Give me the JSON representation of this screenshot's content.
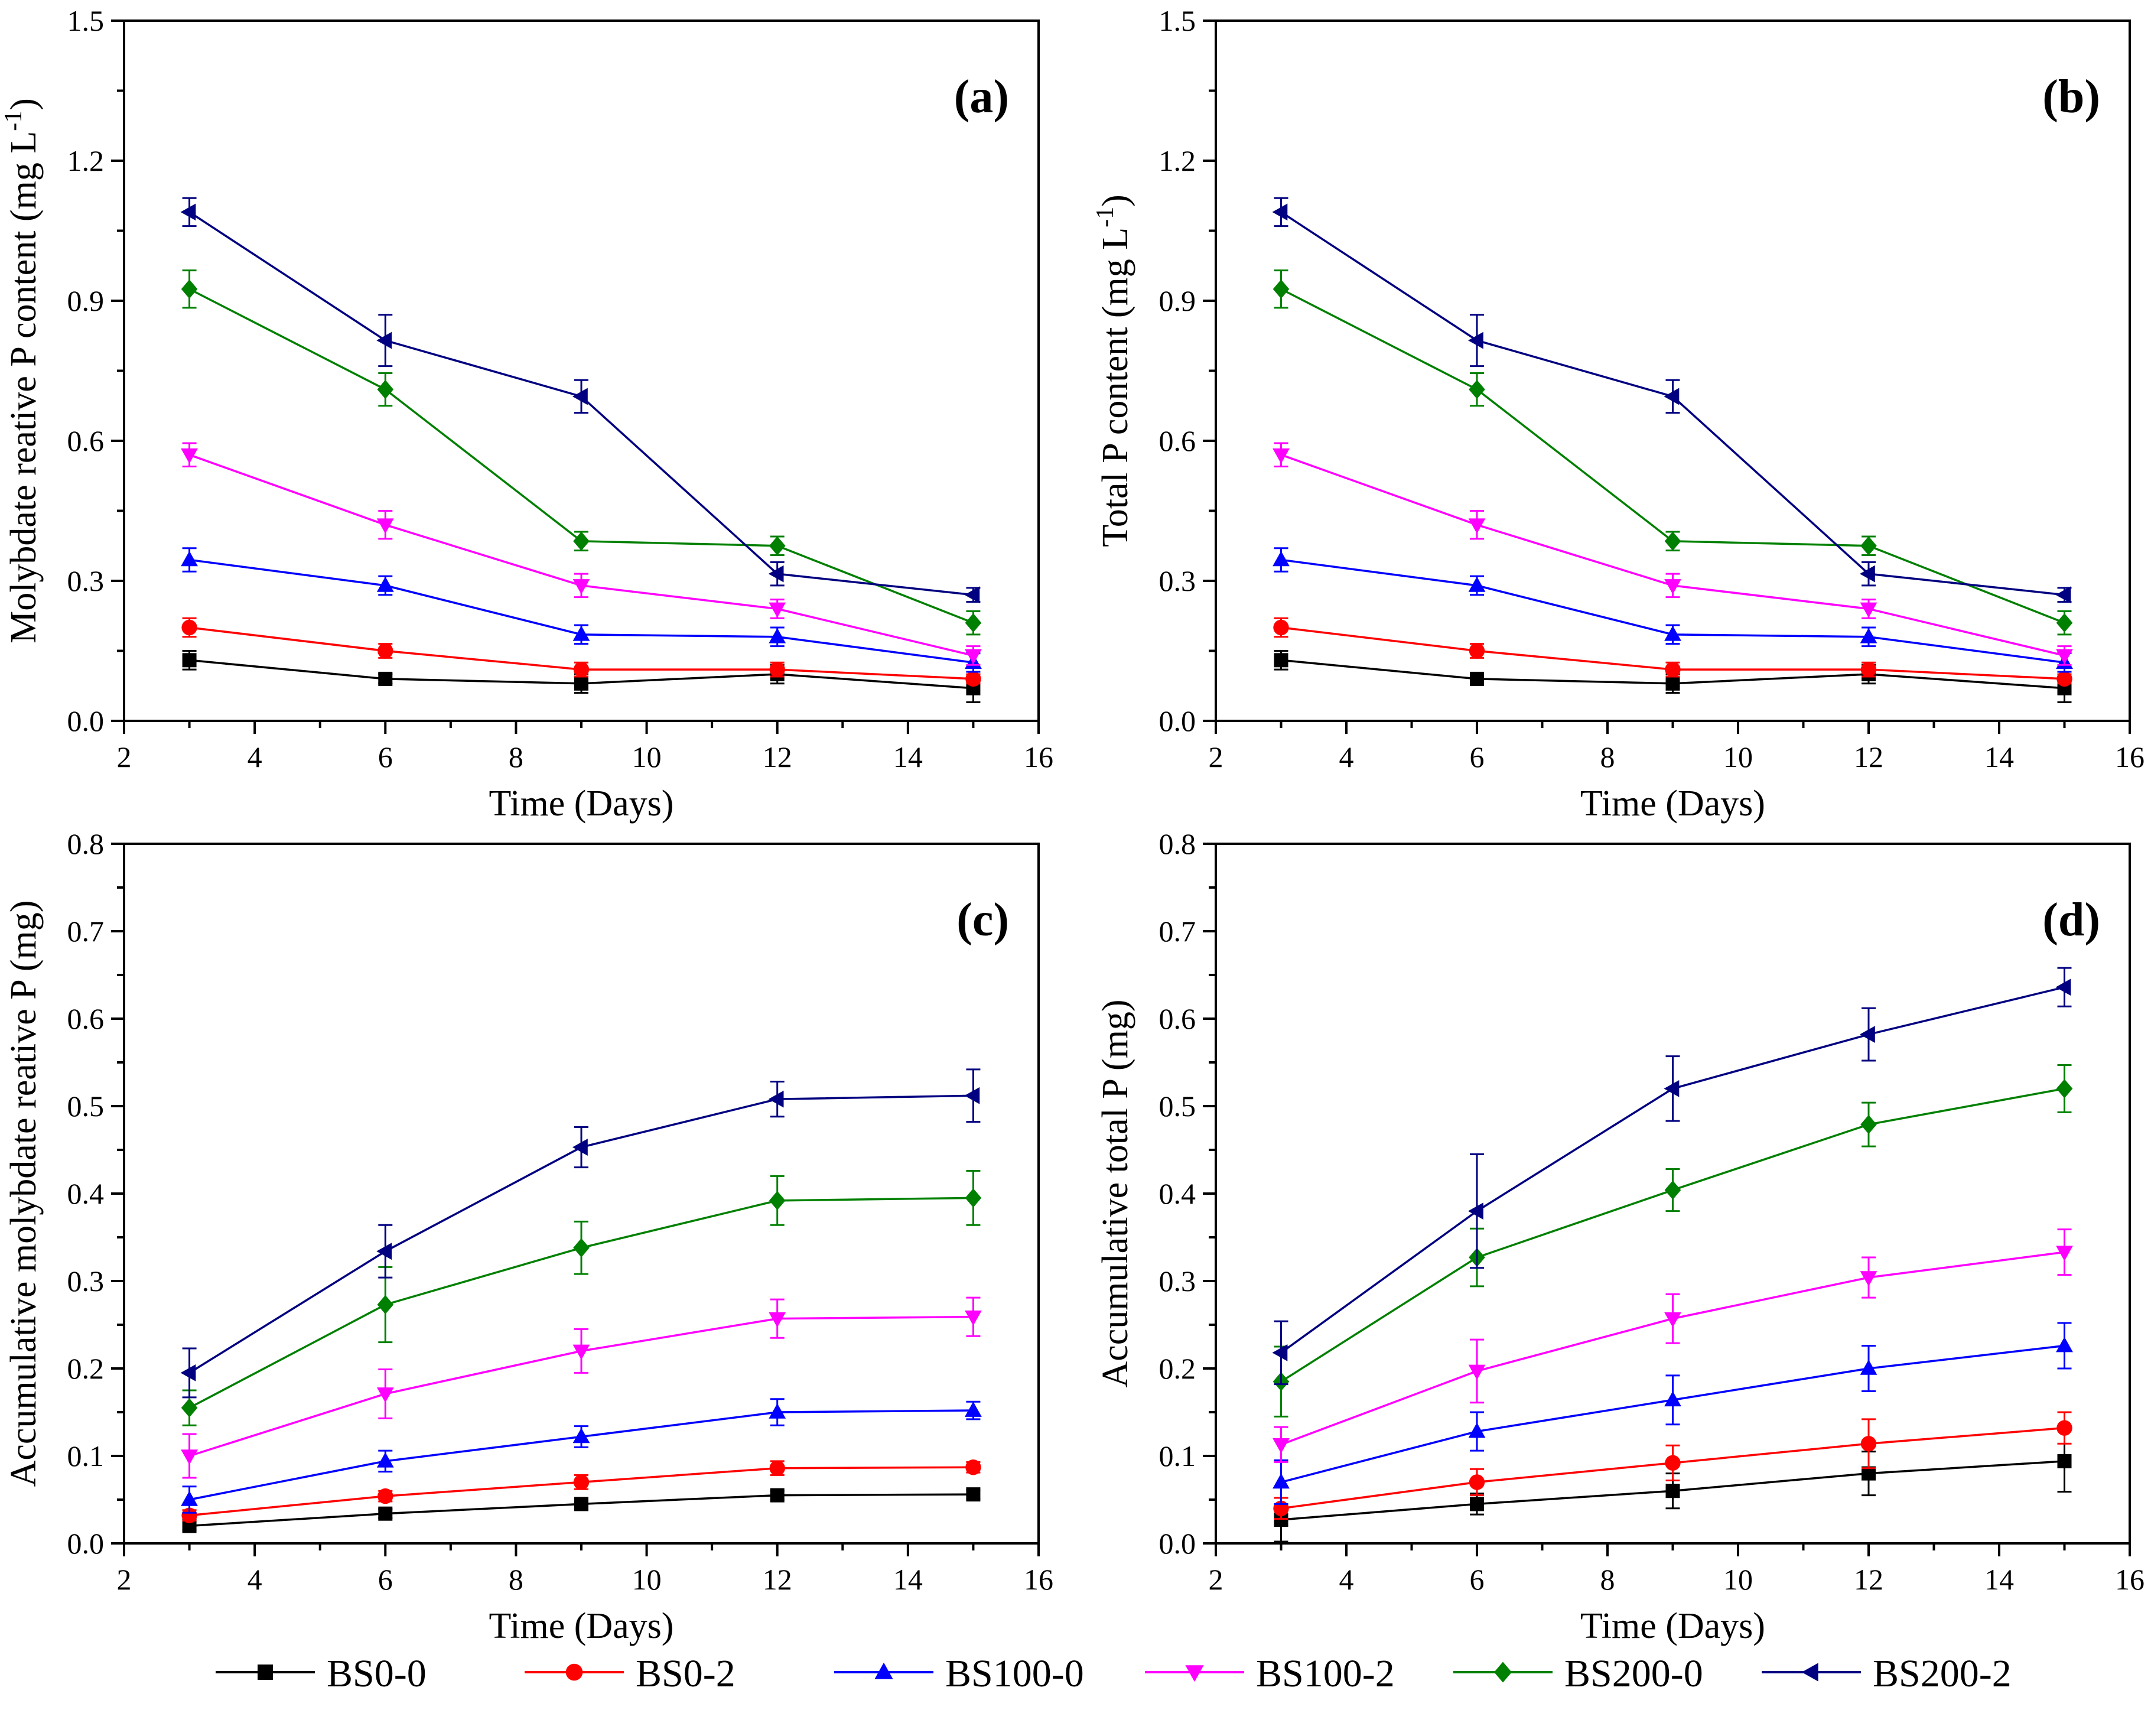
{
  "series_styles": [
    {
      "name": "BS0-0",
      "color": "#000000",
      "marker": "square"
    },
    {
      "name": "BS0-2",
      "color": "#ff0000",
      "marker": "circle"
    },
    {
      "name": "BS100-0",
      "color": "#0000ff",
      "marker": "triangle-up"
    },
    {
      "name": "BS100-2",
      "color": "#ff00ff",
      "marker": "triangle-down"
    },
    {
      "name": "BS200-0",
      "color": "#008000",
      "marker": "diamond"
    },
    {
      "name": "BS200-2",
      "color": "#000080",
      "marker": "triangle-left"
    }
  ],
  "chart_data": [
    {
      "panel": "(a)",
      "type": "line",
      "xlabel": "Time (Days)",
      "ylabel": "Molybdate reative P content (mg L",
      "ylabel_sup": "-1",
      "ylabel_tail": ")",
      "xlim": [
        2,
        16
      ],
      "ylim": [
        0,
        1.5
      ],
      "xticks": [
        2,
        4,
        6,
        8,
        10,
        12,
        14,
        16
      ],
      "xtick_labels": [
        "2",
        "4",
        "6",
        "8",
        "10",
        "12",
        "14",
        "16"
      ],
      "yticks": [
        0,
        0.3,
        0.6,
        0.9,
        1.2,
        1.5
      ],
      "ytick_labels": [
        "0.0",
        "0.3",
        "0.6",
        "0.9",
        "1.2",
        "1.5"
      ],
      "x": [
        3,
        6,
        9,
        12,
        15
      ],
      "series": [
        {
          "name": "BS0-0",
          "values": [
            0.13,
            0.09,
            0.08,
            0.1,
            0.07
          ],
          "errors": [
            0.02,
            0.01,
            0.02,
            0.02,
            0.03
          ]
        },
        {
          "name": "BS0-2",
          "values": [
            0.2,
            0.15,
            0.11,
            0.11,
            0.09
          ],
          "errors": [
            0.02,
            0.015,
            0.015,
            0.015,
            0.01
          ]
        },
        {
          "name": "BS100-0",
          "values": [
            0.345,
            0.29,
            0.185,
            0.18,
            0.125
          ],
          "errors": [
            0.025,
            0.02,
            0.02,
            0.02,
            0.02
          ]
        },
        {
          "name": "BS100-2",
          "values": [
            0.57,
            0.42,
            0.29,
            0.24,
            0.14
          ],
          "errors": [
            0.025,
            0.03,
            0.025,
            0.02,
            0.02
          ]
        },
        {
          "name": "BS200-0",
          "values": [
            0.925,
            0.71,
            0.385,
            0.375,
            0.21
          ],
          "errors": [
            0.04,
            0.035,
            0.02,
            0.02,
            0.025
          ]
        },
        {
          "name": "BS200-2",
          "values": [
            1.09,
            0.815,
            0.695,
            0.315,
            0.27
          ],
          "errors": [
            0.03,
            0.055,
            0.035,
            0.025,
            0.015
          ]
        }
      ]
    },
    {
      "panel": "(b)",
      "type": "line",
      "xlabel": "Time (Days)",
      "ylabel": "Total P content (mg L",
      "ylabel_sup": "-1",
      "ylabel_tail": ")",
      "xlim": [
        2,
        16
      ],
      "ylim": [
        0,
        1.5
      ],
      "xticks": [
        2,
        4,
        6,
        8,
        10,
        12,
        14,
        16
      ],
      "xtick_labels": [
        "2",
        "4",
        "6",
        "8",
        "10",
        "12",
        "14",
        "16"
      ],
      "yticks": [
        0,
        0.3,
        0.6,
        0.9,
        1.2,
        1.5
      ],
      "ytick_labels": [
        "0.0",
        "0.3",
        "0.6",
        "0.9",
        "1.2",
        "1.5"
      ],
      "x": [
        3,
        6,
        9,
        12,
        15
      ],
      "series": [
        {
          "name": "BS0-0",
          "values": [
            0.13,
            0.09,
            0.08,
            0.1,
            0.07
          ],
          "errors": [
            0.02,
            0.01,
            0.02,
            0.02,
            0.03
          ]
        },
        {
          "name": "BS0-2",
          "values": [
            0.2,
            0.15,
            0.11,
            0.11,
            0.09
          ],
          "errors": [
            0.02,
            0.015,
            0.015,
            0.015,
            0.01
          ]
        },
        {
          "name": "BS100-0",
          "values": [
            0.345,
            0.29,
            0.185,
            0.18,
            0.125
          ],
          "errors": [
            0.025,
            0.02,
            0.02,
            0.02,
            0.02
          ]
        },
        {
          "name": "BS100-2",
          "values": [
            0.57,
            0.42,
            0.29,
            0.24,
            0.14
          ],
          "errors": [
            0.025,
            0.03,
            0.025,
            0.02,
            0.02
          ]
        },
        {
          "name": "BS200-0",
          "values": [
            0.925,
            0.71,
            0.385,
            0.375,
            0.21
          ],
          "errors": [
            0.04,
            0.035,
            0.02,
            0.02,
            0.025
          ]
        },
        {
          "name": "BS200-2",
          "values": [
            1.09,
            0.815,
            0.695,
            0.315,
            0.27
          ],
          "errors": [
            0.03,
            0.055,
            0.035,
            0.025,
            0.015
          ]
        }
      ]
    },
    {
      "panel": "(c)",
      "type": "line",
      "xlabel": "Time (Days)",
      "ylabel": "Accumulative molybdate reative P (mg)",
      "ylabel_sup": "",
      "ylabel_tail": "",
      "xlim": [
        2,
        16
      ],
      "ylim": [
        0,
        0.8
      ],
      "xticks": [
        2,
        4,
        6,
        8,
        10,
        12,
        14,
        16
      ],
      "xtick_labels": [
        "2",
        "4",
        "6",
        "8",
        "10",
        "12",
        "14",
        "16"
      ],
      "yticks": [
        0,
        0.1,
        0.2,
        0.3,
        0.4,
        0.5,
        0.6,
        0.7,
        0.8
      ],
      "ytick_labels": [
        "0.0",
        "0.1",
        "0.2",
        "0.3",
        "0.4",
        "0.5",
        "0.6",
        "0.7",
        "0.8"
      ],
      "x": [
        3,
        6,
        9,
        12,
        15
      ],
      "series": [
        {
          "name": "BS0-0",
          "values": [
            0.02,
            0.034,
            0.045,
            0.055,
            0.056
          ],
          "errors": [
            0.005,
            0.005,
            0.005,
            0.005,
            0.005
          ]
        },
        {
          "name": "BS0-2",
          "values": [
            0.032,
            0.054,
            0.07,
            0.086,
            0.087
          ],
          "errors": [
            0.006,
            0.006,
            0.008,
            0.008,
            0.006
          ]
        },
        {
          "name": "BS100-0",
          "values": [
            0.05,
            0.094,
            0.122,
            0.15,
            0.152
          ],
          "errors": [
            0.015,
            0.012,
            0.012,
            0.015,
            0.01
          ]
        },
        {
          "name": "BS100-2",
          "values": [
            0.1,
            0.171,
            0.22,
            0.257,
            0.259
          ],
          "errors": [
            0.025,
            0.028,
            0.025,
            0.022,
            0.022
          ]
        },
        {
          "name": "BS200-0",
          "values": [
            0.155,
            0.273,
            0.338,
            0.392,
            0.395
          ],
          "errors": [
            0.02,
            0.043,
            0.03,
            0.028,
            0.031
          ]
        },
        {
          "name": "BS200-2",
          "values": [
            0.195,
            0.334,
            0.453,
            0.508,
            0.512
          ],
          "errors": [
            0.028,
            0.03,
            0.023,
            0.02,
            0.03
          ]
        }
      ]
    },
    {
      "panel": "(d)",
      "type": "line",
      "xlabel": "Time (Days)",
      "ylabel": "Accumulative total P (mg)",
      "ylabel_sup": "",
      "ylabel_tail": "",
      "xlim": [
        2,
        16
      ],
      "ylim": [
        0,
        0.8
      ],
      "xticks": [
        2,
        4,
        6,
        8,
        10,
        12,
        14,
        16
      ],
      "xtick_labels": [
        "2",
        "4",
        "6",
        "8",
        "10",
        "12",
        "14",
        "16"
      ],
      "yticks": [
        0,
        0.1,
        0.2,
        0.3,
        0.4,
        0.5,
        0.6,
        0.7,
        0.8
      ],
      "ytick_labels": [
        "0.0",
        "0.1",
        "0.2",
        "0.3",
        "0.4",
        "0.5",
        "0.6",
        "0.7",
        "0.8"
      ],
      "x": [
        3,
        6,
        9,
        12,
        15
      ],
      "series": [
        {
          "name": "BS0-0",
          "values": [
            0.027,
            0.045,
            0.06,
            0.08,
            0.094
          ],
          "errors": [
            0.025,
            0.012,
            0.02,
            0.025,
            0.035
          ]
        },
        {
          "name": "BS0-2",
          "values": [
            0.04,
            0.07,
            0.092,
            0.114,
            0.132
          ],
          "errors": [
            0.012,
            0.015,
            0.02,
            0.028,
            0.018
          ]
        },
        {
          "name": "BS100-0",
          "values": [
            0.07,
            0.128,
            0.164,
            0.2,
            0.226
          ],
          "errors": [
            0.025,
            0.022,
            0.028,
            0.026,
            0.026
          ]
        },
        {
          "name": "BS100-2",
          "values": [
            0.113,
            0.197,
            0.257,
            0.304,
            0.333
          ],
          "errors": [
            0.02,
            0.036,
            0.028,
            0.023,
            0.026
          ]
        },
        {
          "name": "BS200-0",
          "values": [
            0.185,
            0.327,
            0.404,
            0.479,
            0.52
          ],
          "errors": [
            0.04,
            0.033,
            0.024,
            0.025,
            0.027
          ]
        },
        {
          "name": "BS200-2",
          "values": [
            0.218,
            0.38,
            0.52,
            0.582,
            0.636
          ],
          "errors": [
            0.036,
            0.065,
            0.037,
            0.03,
            0.022
          ]
        }
      ]
    }
  ]
}
